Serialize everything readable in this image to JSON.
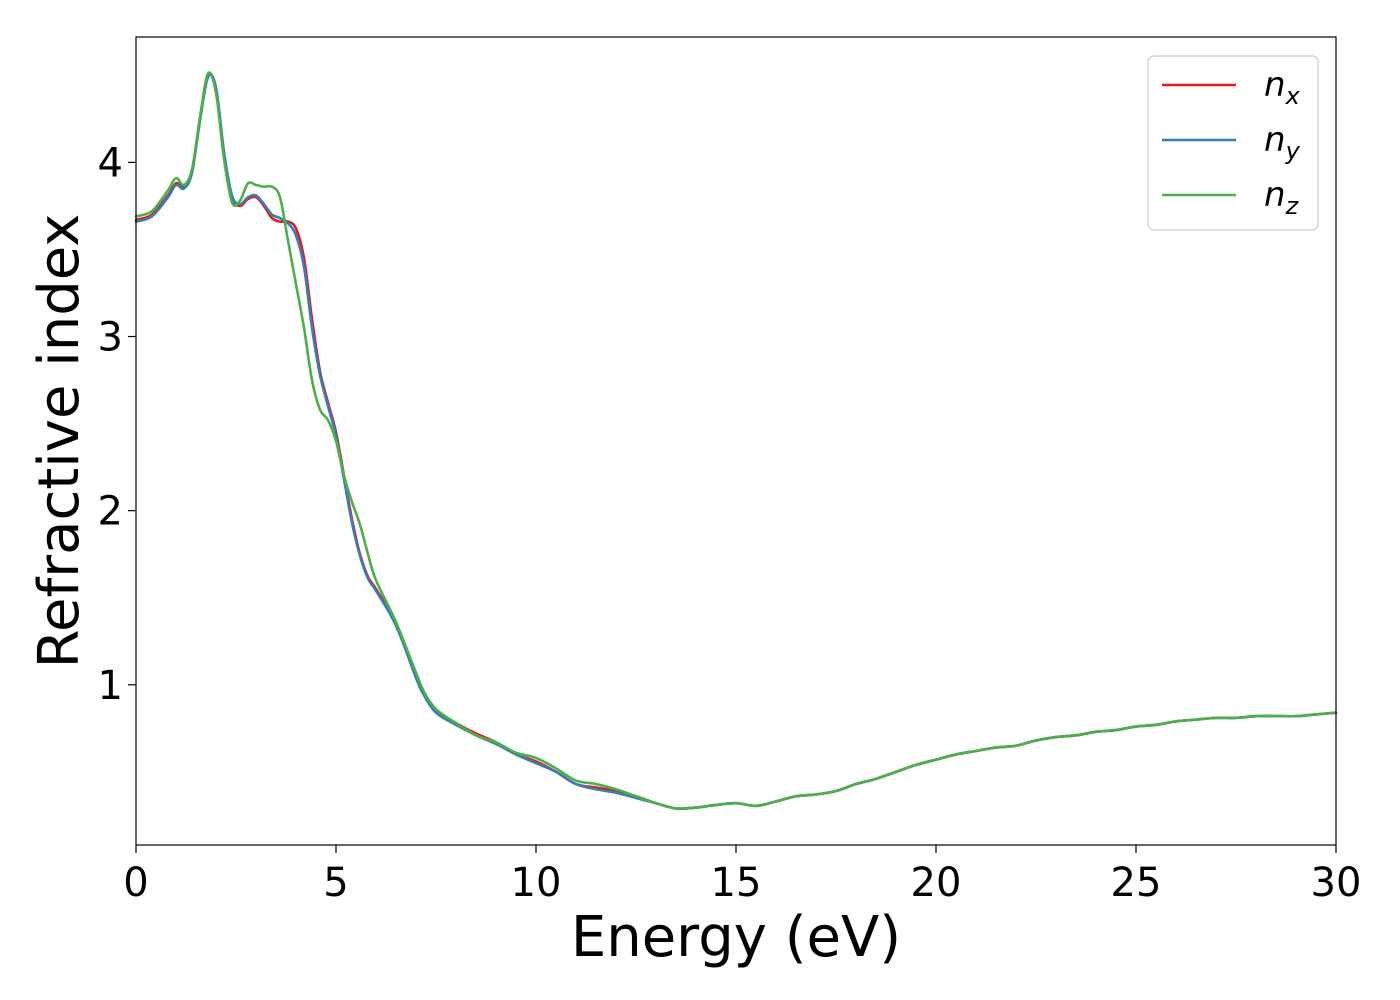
{
  "chart_data": {
    "type": "line",
    "xlabel": "Energy (eV)",
    "ylabel": "Refractive index",
    "xlim": [
      0,
      30
    ],
    "ylim": [
      0.08,
      4.72
    ],
    "x_ticks": [
      0,
      5,
      10,
      15,
      20,
      25,
      30
    ],
    "y_ticks": [
      1,
      2,
      3,
      4
    ],
    "grid": false,
    "legend": "top-right",
    "series": [
      {
        "name": "n",
        "subscript": "x",
        "color": "#e41a1c",
        "points": [
          [
            0,
            3.67
          ],
          [
            0.4,
            3.7
          ],
          [
            0.8,
            3.81
          ],
          [
            1.0,
            3.88
          ],
          [
            1.2,
            3.86
          ],
          [
            1.4,
            3.95
          ],
          [
            1.6,
            4.25
          ],
          [
            1.8,
            4.5
          ],
          [
            2.0,
            4.42
          ],
          [
            2.2,
            4.05
          ],
          [
            2.4,
            3.8
          ],
          [
            2.6,
            3.75
          ],
          [
            2.8,
            3.79
          ],
          [
            3.0,
            3.8
          ],
          [
            3.2,
            3.75
          ],
          [
            3.4,
            3.68
          ],
          [
            3.6,
            3.66
          ],
          [
            3.8,
            3.66
          ],
          [
            4.0,
            3.62
          ],
          [
            4.2,
            3.45
          ],
          [
            4.4,
            3.1
          ],
          [
            4.6,
            2.8
          ],
          [
            4.8,
            2.62
          ],
          [
            5.0,
            2.45
          ],
          [
            5.2,
            2.2
          ],
          [
            5.4,
            1.95
          ],
          [
            5.6,
            1.75
          ],
          [
            5.8,
            1.62
          ],
          [
            6.0,
            1.55
          ],
          [
            6.5,
            1.35
          ],
          [
            7.0,
            1.05
          ],
          [
            7.2,
            0.95
          ],
          [
            7.5,
            0.85
          ],
          [
            8.0,
            0.78
          ],
          [
            8.5,
            0.72
          ],
          [
            9.0,
            0.67
          ],
          [
            9.5,
            0.6
          ],
          [
            10.0,
            0.56
          ],
          [
            10.5,
            0.5
          ],
          [
            11.0,
            0.43
          ],
          [
            11.5,
            0.41
          ],
          [
            12.0,
            0.39
          ],
          [
            12.5,
            0.36
          ],
          [
            13.0,
            0.32
          ],
          [
            13.5,
            0.29
          ],
          [
            14.0,
            0.295
          ],
          [
            14.5,
            0.31
          ],
          [
            15.0,
            0.32
          ],
          [
            15.5,
            0.305
          ],
          [
            16.0,
            0.33
          ],
          [
            16.5,
            0.36
          ],
          [
            17.0,
            0.37
          ],
          [
            17.5,
            0.39
          ],
          [
            18.0,
            0.43
          ],
          [
            18.5,
            0.46
          ],
          [
            19.0,
            0.5
          ],
          [
            19.5,
            0.54
          ],
          [
            20.0,
            0.57
          ],
          [
            20.5,
            0.6
          ],
          [
            21.0,
            0.62
          ],
          [
            21.5,
            0.64
          ],
          [
            22.0,
            0.65
          ],
          [
            22.5,
            0.68
          ],
          [
            23.0,
            0.7
          ],
          [
            23.5,
            0.71
          ],
          [
            24.0,
            0.73
          ],
          [
            24.5,
            0.74
          ],
          [
            25.0,
            0.76
          ],
          [
            25.5,
            0.77
          ],
          [
            26.0,
            0.79
          ],
          [
            26.5,
            0.8
          ],
          [
            27.0,
            0.81
          ],
          [
            27.5,
            0.81
          ],
          [
            28.0,
            0.82
          ],
          [
            28.5,
            0.82
          ],
          [
            29.0,
            0.82
          ],
          [
            29.5,
            0.83
          ],
          [
            30.0,
            0.84
          ]
        ]
      },
      {
        "name": "n",
        "subscript": "y",
        "color": "#377eb8",
        "points": [
          [
            0,
            3.66
          ],
          [
            0.4,
            3.69
          ],
          [
            0.8,
            3.8
          ],
          [
            1.0,
            3.87
          ],
          [
            1.2,
            3.85
          ],
          [
            1.4,
            3.94
          ],
          [
            1.6,
            4.24
          ],
          [
            1.8,
            4.49
          ],
          [
            2.0,
            4.43
          ],
          [
            2.2,
            4.06
          ],
          [
            2.4,
            3.81
          ],
          [
            2.6,
            3.76
          ],
          [
            2.8,
            3.8
          ],
          [
            3.0,
            3.81
          ],
          [
            3.2,
            3.76
          ],
          [
            3.4,
            3.7
          ],
          [
            3.6,
            3.68
          ],
          [
            3.8,
            3.65
          ],
          [
            4.0,
            3.58
          ],
          [
            4.2,
            3.4
          ],
          [
            4.4,
            3.05
          ],
          [
            4.6,
            2.78
          ],
          [
            4.8,
            2.6
          ],
          [
            5.0,
            2.43
          ],
          [
            5.2,
            2.18
          ],
          [
            5.4,
            1.93
          ],
          [
            5.6,
            1.74
          ],
          [
            5.8,
            1.61
          ],
          [
            6.0,
            1.54
          ],
          [
            6.5,
            1.34
          ],
          [
            7.0,
            1.04
          ],
          [
            7.2,
            0.94
          ],
          [
            7.5,
            0.84
          ],
          [
            8.0,
            0.77
          ],
          [
            8.5,
            0.71
          ],
          [
            9.0,
            0.66
          ],
          [
            9.5,
            0.6
          ],
          [
            10.0,
            0.55
          ],
          [
            10.5,
            0.5
          ],
          [
            11.0,
            0.43
          ],
          [
            11.5,
            0.4
          ],
          [
            12.0,
            0.38
          ],
          [
            12.5,
            0.35
          ],
          [
            13.0,
            0.32
          ],
          [
            13.5,
            0.29
          ],
          [
            14.0,
            0.295
          ],
          [
            14.5,
            0.31
          ],
          [
            15.0,
            0.32
          ],
          [
            15.5,
            0.305
          ],
          [
            16.0,
            0.33
          ],
          [
            16.5,
            0.36
          ],
          [
            17.0,
            0.37
          ],
          [
            17.5,
            0.39
          ],
          [
            18.0,
            0.43
          ],
          [
            18.5,
            0.46
          ],
          [
            19.0,
            0.5
          ],
          [
            19.5,
            0.54
          ],
          [
            20.0,
            0.57
          ],
          [
            20.5,
            0.6
          ],
          [
            21.0,
            0.62
          ],
          [
            21.5,
            0.64
          ],
          [
            22.0,
            0.65
          ],
          [
            22.5,
            0.68
          ],
          [
            23.0,
            0.7
          ],
          [
            23.5,
            0.71
          ],
          [
            24.0,
            0.73
          ],
          [
            24.5,
            0.74
          ],
          [
            25.0,
            0.76
          ],
          [
            25.5,
            0.77
          ],
          [
            26.0,
            0.79
          ],
          [
            26.5,
            0.8
          ],
          [
            27.0,
            0.81
          ],
          [
            27.5,
            0.81
          ],
          [
            28.0,
            0.82
          ],
          [
            28.5,
            0.82
          ],
          [
            29.0,
            0.82
          ],
          [
            29.5,
            0.83
          ],
          [
            30.0,
            0.84
          ]
        ]
      },
      {
        "name": "n",
        "subscript": "z",
        "color": "#4daf4a",
        "points": [
          [
            0,
            3.69
          ],
          [
            0.4,
            3.72
          ],
          [
            0.8,
            3.84
          ],
          [
            1.0,
            3.91
          ],
          [
            1.2,
            3.87
          ],
          [
            1.4,
            3.96
          ],
          [
            1.6,
            4.26
          ],
          [
            1.8,
            4.51
          ],
          [
            2.0,
            4.4
          ],
          [
            2.2,
            4.02
          ],
          [
            2.4,
            3.77
          ],
          [
            2.6,
            3.78
          ],
          [
            2.8,
            3.88
          ],
          [
            3.0,
            3.87
          ],
          [
            3.2,
            3.86
          ],
          [
            3.4,
            3.86
          ],
          [
            3.6,
            3.8
          ],
          [
            3.8,
            3.55
          ],
          [
            4.0,
            3.3
          ],
          [
            4.2,
            3.05
          ],
          [
            4.4,
            2.75
          ],
          [
            4.6,
            2.58
          ],
          [
            4.8,
            2.52
          ],
          [
            5.0,
            2.4
          ],
          [
            5.2,
            2.2
          ],
          [
            5.4,
            2.05
          ],
          [
            5.6,
            1.92
          ],
          [
            5.8,
            1.75
          ],
          [
            6.0,
            1.6
          ],
          [
            6.5,
            1.36
          ],
          [
            7.0,
            1.07
          ],
          [
            7.2,
            0.96
          ],
          [
            7.5,
            0.86
          ],
          [
            8.0,
            0.78
          ],
          [
            8.5,
            0.71
          ],
          [
            9.0,
            0.67
          ],
          [
            9.5,
            0.61
          ],
          [
            10.0,
            0.58
          ],
          [
            10.5,
            0.52
          ],
          [
            11.0,
            0.45
          ],
          [
            11.5,
            0.43
          ],
          [
            12.0,
            0.4
          ],
          [
            12.5,
            0.36
          ],
          [
            13.0,
            0.32
          ],
          [
            13.5,
            0.29
          ],
          [
            14.0,
            0.295
          ],
          [
            14.5,
            0.31
          ],
          [
            15.0,
            0.32
          ],
          [
            15.5,
            0.305
          ],
          [
            16.0,
            0.33
          ],
          [
            16.5,
            0.36
          ],
          [
            17.0,
            0.37
          ],
          [
            17.5,
            0.39
          ],
          [
            18.0,
            0.43
          ],
          [
            18.5,
            0.46
          ],
          [
            19.0,
            0.5
          ],
          [
            19.5,
            0.54
          ],
          [
            20.0,
            0.57
          ],
          [
            20.5,
            0.6
          ],
          [
            21.0,
            0.62
          ],
          [
            21.5,
            0.64
          ],
          [
            22.0,
            0.65
          ],
          [
            22.5,
            0.68
          ],
          [
            23.0,
            0.7
          ],
          [
            23.5,
            0.71
          ],
          [
            24.0,
            0.73
          ],
          [
            24.5,
            0.74
          ],
          [
            25.0,
            0.76
          ],
          [
            25.5,
            0.77
          ],
          [
            26.0,
            0.79
          ],
          [
            26.5,
            0.8
          ],
          [
            27.0,
            0.81
          ],
          [
            27.5,
            0.81
          ],
          [
            28.0,
            0.82
          ],
          [
            28.5,
            0.82
          ],
          [
            29.0,
            0.82
          ],
          [
            29.5,
            0.83
          ],
          [
            30.0,
            0.84
          ]
        ]
      }
    ]
  }
}
